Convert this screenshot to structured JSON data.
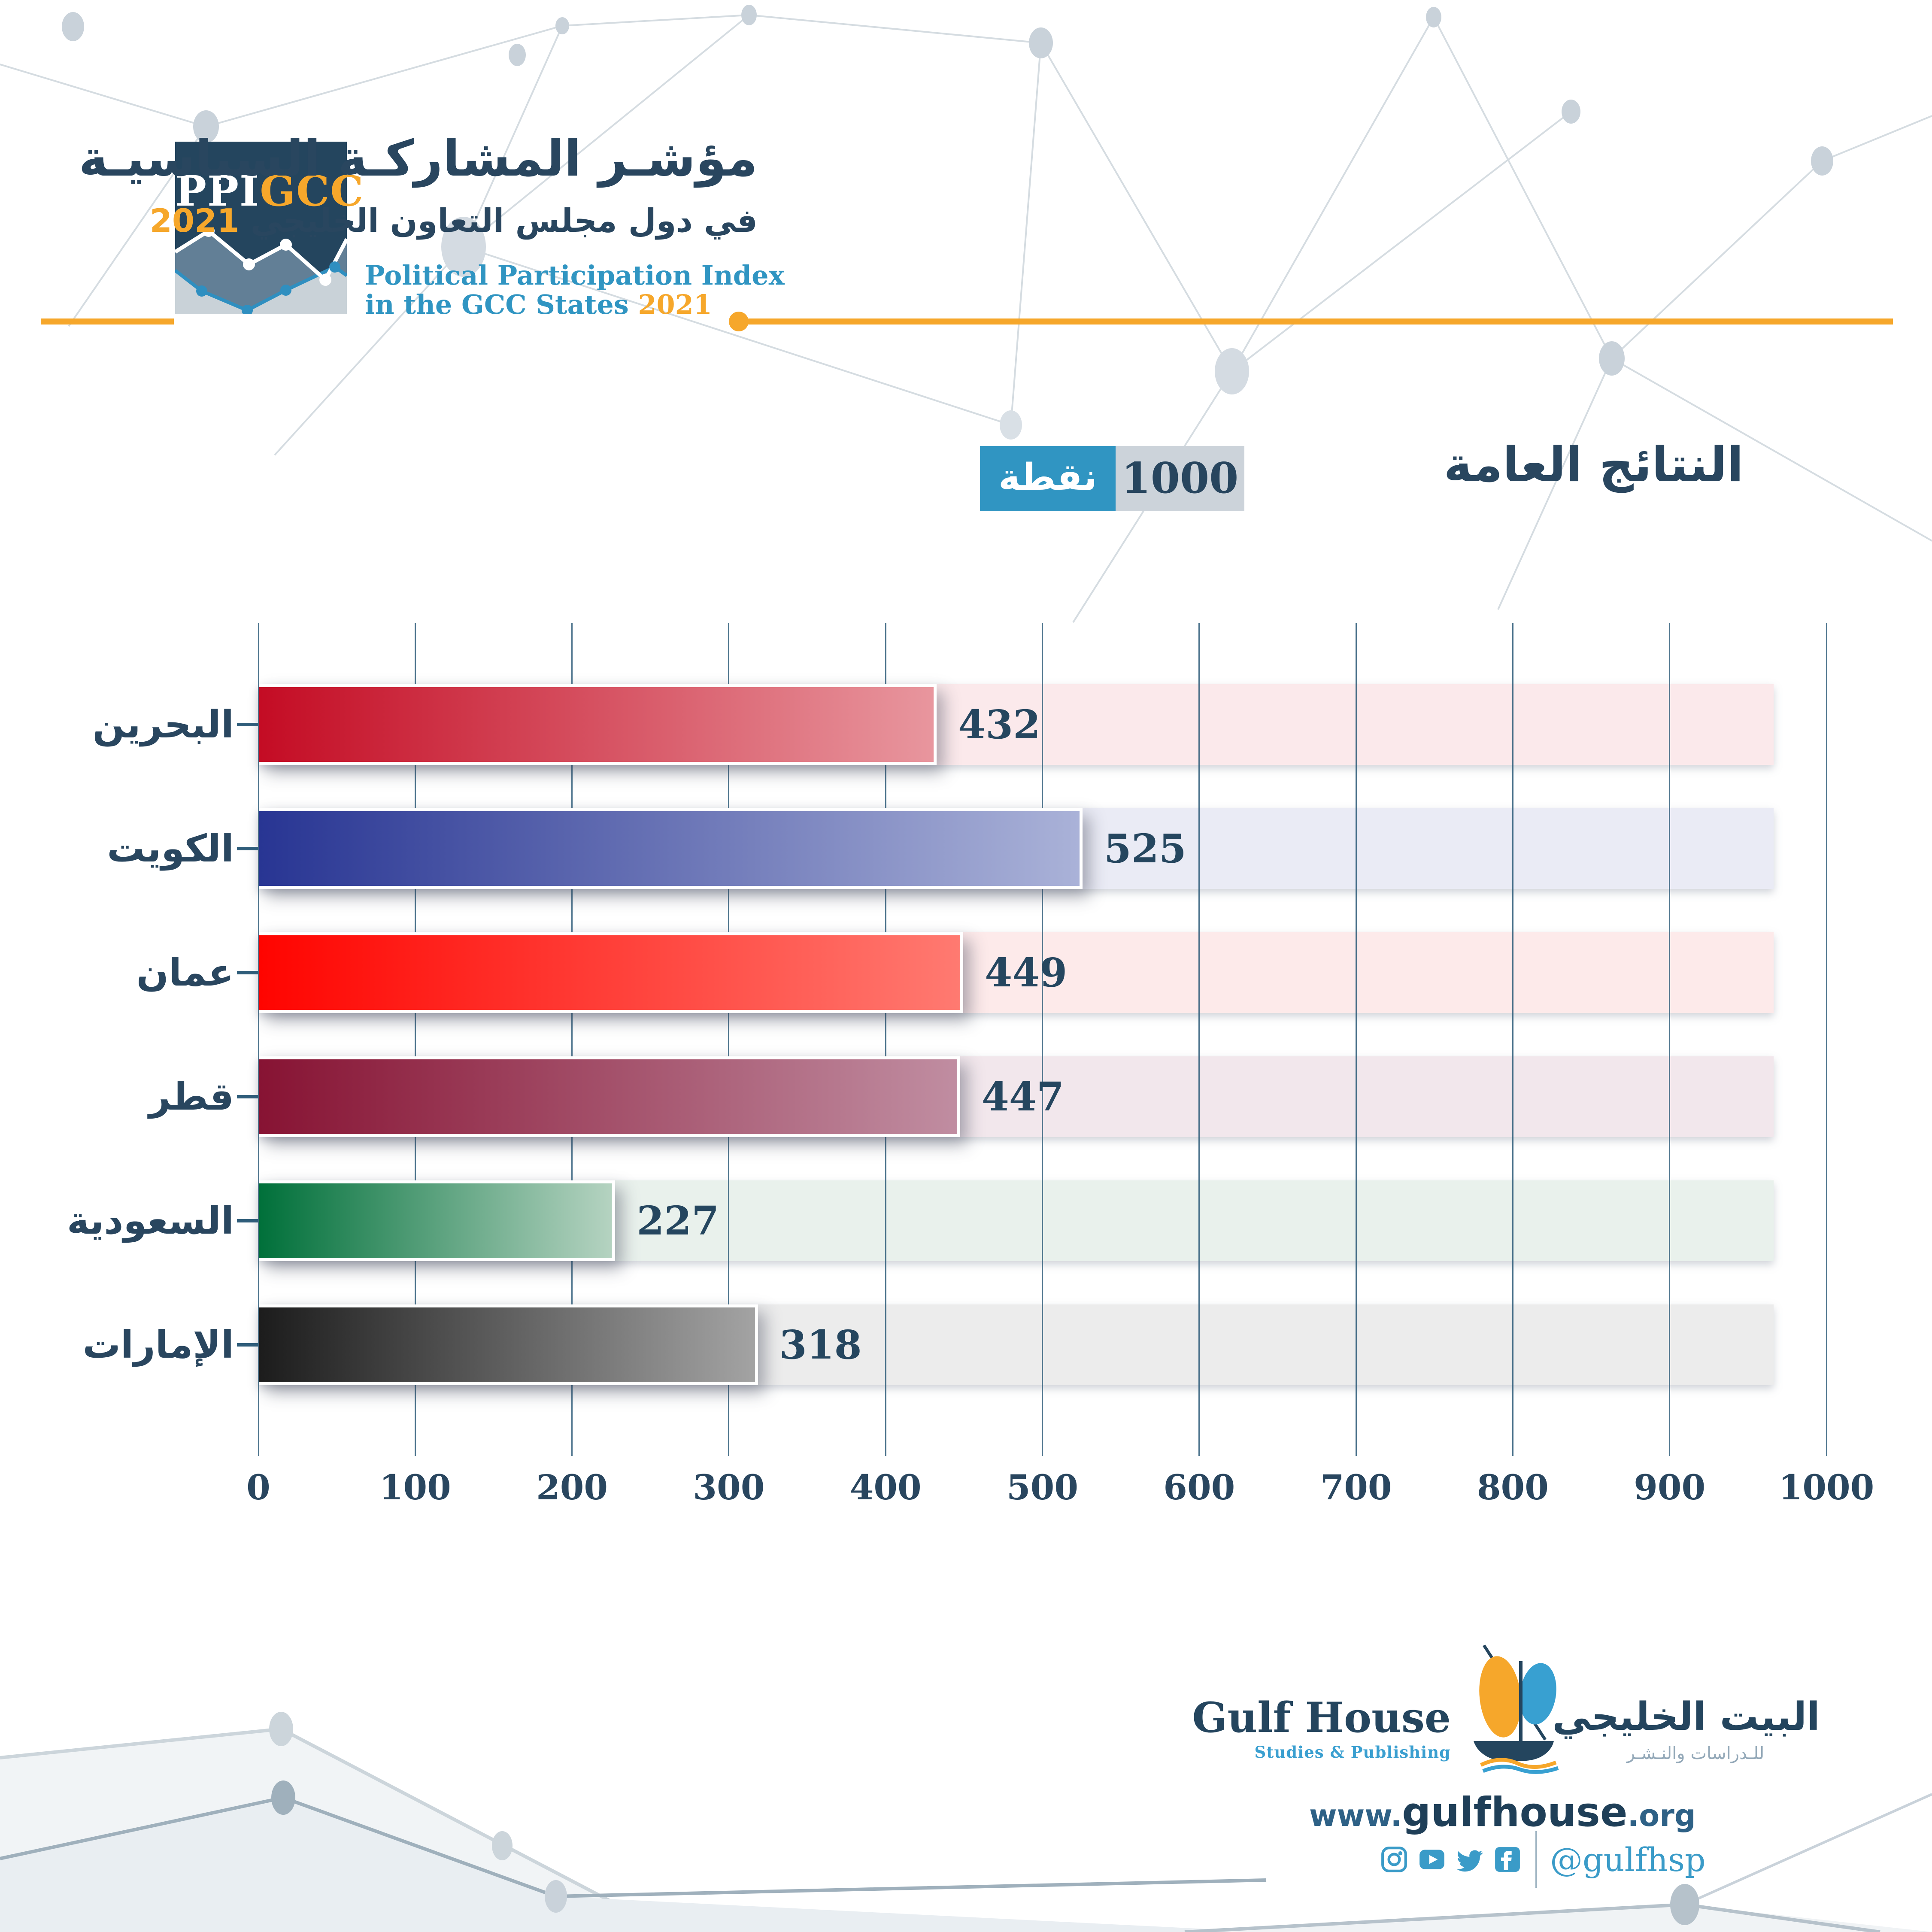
{
  "header": {
    "logo_ppi": "PPI",
    "logo_gcc": "GCC",
    "title_ar_line1": "مؤشـر المشاركـة السياسيـة",
    "title_ar_line2": "في دول مجلس التعاون الخليجي",
    "title_ar_year": "2021",
    "title_en_line1": "Political Participation Index",
    "title_en_line2": "in the GCC States",
    "title_en_year": "2021"
  },
  "section": {
    "title_ar": "النتائج العامة",
    "points_value": "1000",
    "points_label_ar": "نقطة"
  },
  "chart_data": {
    "type": "bar",
    "orientation": "horizontal",
    "title": "النتائج العامة — 1000 نقطة",
    "max_points": 1000,
    "categories": [
      "البحرين",
      "الكويت",
      "عمان",
      "قطر",
      "السعودية",
      "الإمارات"
    ],
    "slugs": [
      "bahrain",
      "kuwait",
      "oman",
      "qatar",
      "saudi-arabia",
      "uae"
    ],
    "values": [
      432,
      525,
      449,
      447,
      227,
      318
    ],
    "bar_gradients": [
      [
        "#c40c24",
        "#e8969e"
      ],
      [
        "#283593",
        "#aab2d8"
      ],
      [
        "#ff0400",
        "#ff7a71"
      ],
      [
        "#871333",
        "#c08da1"
      ],
      [
        "#00703a",
        "#b5d3c1"
      ],
      [
        "#1c1c1c",
        "#a3a3a3"
      ]
    ],
    "track_colors": [
      "#fbe9eb",
      "#eaebf5",
      "#fdeaea",
      "#f2e7ec",
      "#e9f1ec",
      "#ececec"
    ],
    "xlim": [
      0,
      1000
    ],
    "x_ticks": [
      "0",
      "100",
      "200",
      "300",
      "400",
      "500",
      "600",
      "700",
      "800",
      "900",
      "1000"
    ],
    "grid": true,
    "legend": "none"
  },
  "footer": {
    "logo_en": "Gulf House",
    "logo_en_sub": "Studies & Publishing",
    "logo_ar": "البيت الخليجي",
    "logo_ar_sub": "للـدراسات والنـشـر",
    "website_www": "www.",
    "website_name": "gulfhouse",
    "website_tld": ".org",
    "social_handle": "@gulfhsp",
    "social_icons": [
      "instagram-icon",
      "youtube-icon",
      "twitter-icon",
      "facebook-icon"
    ]
  },
  "colors": {
    "navy": "#24455e",
    "text_navy": "#29465f",
    "accent_orange": "#f6a72b",
    "accent_blue": "#3095c2",
    "grid": "#2f5d7a",
    "points_box_gray": "#ccd3da"
  }
}
